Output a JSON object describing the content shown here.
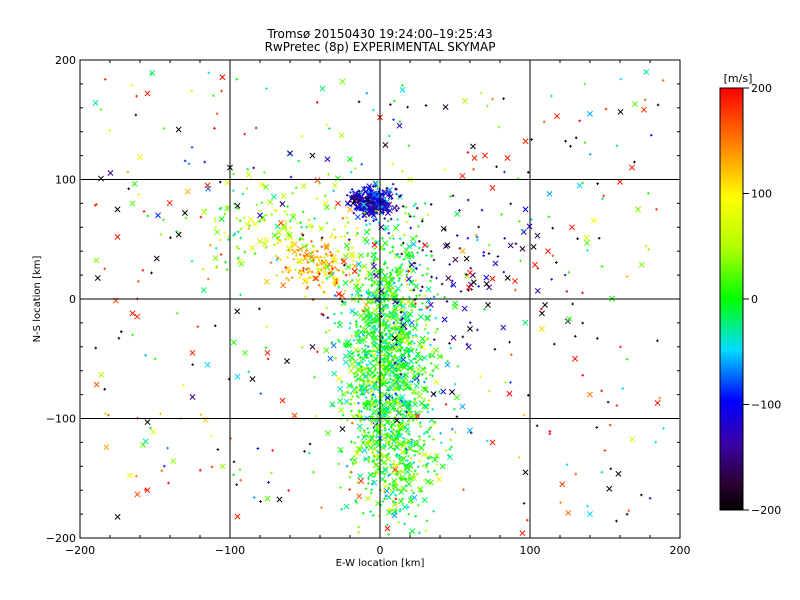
{
  "chart_data": {
    "type": "scatter",
    "title": "Tromsø 20150430 19:24:00–19:25:43",
    "subtitle": "RwPretec (8p) EXPERIMENTAL SKYMAP",
    "xlabel": "E-W location [km]",
    "ylabel": "N-S location [km]",
    "xlim": [
      -200,
      200
    ],
    "ylim": [
      -200,
      200
    ],
    "x_ticks": [
      "−200",
      "−100",
      "0",
      "100",
      "200"
    ],
    "y_ticks": [
      "−200",
      "−100",
      "0",
      "100",
      "200"
    ],
    "grid_values": [
      -100,
      0,
      100
    ],
    "colorbar": {
      "unit": "[m/s]",
      "range": [
        -200,
        200
      ],
      "ticks": [
        "200",
        "100",
        "0",
        "−100",
        "−200"
      ],
      "colormap": "rainbow (black → purple → blue → cyan → green → yellow → red)"
    },
    "marker_legend": "'×' = larger-amplitude echoes, '+' = smaller echoes",
    "clusters": [
      {
        "center": [
          5,
          -55
        ],
        "spread": [
          14,
          55
        ],
        "velocity": 0,
        "density": "very high"
      },
      {
        "center": [
          -5,
          82
        ],
        "spread": [
          8,
          6
        ],
        "velocity": -120,
        "density": "high"
      },
      {
        "center": [
          -40,
          30
        ],
        "spread": [
          14,
          12
        ],
        "velocity": 130,
        "density": "medium"
      },
      {
        "center": [
          -70,
          60
        ],
        "spread": [
          25,
          20
        ],
        "velocity": 40,
        "density": "medium"
      },
      {
        "center": [
          15,
          -130
        ],
        "spread": [
          15,
          25
        ],
        "velocity": 20,
        "density": "medium"
      },
      {
        "center": [
          45,
          20
        ],
        "spread": [
          35,
          35
        ],
        "velocity": -150,
        "density": "low"
      }
    ],
    "sparse_points": [
      {
        "x": -155,
        "y": 172,
        "v": 190,
        "m": "x"
      },
      {
        "x": -100,
        "y": 110,
        "v": -200,
        "m": "x"
      },
      {
        "x": -175,
        "y": 75,
        "v": -200,
        "m": "x"
      },
      {
        "x": -165,
        "y": 80,
        "v": 20,
        "m": "x"
      },
      {
        "x": -148,
        "y": 70,
        "v": -90,
        "m": "x"
      },
      {
        "x": -130,
        "y": 72,
        "v": -200,
        "m": "x"
      },
      {
        "x": -175,
        "y": 52,
        "v": 190,
        "m": "x"
      },
      {
        "x": -165,
        "y": -12,
        "v": 190,
        "m": "x"
      },
      {
        "x": -125,
        "y": -45,
        "v": 190,
        "m": "x"
      },
      {
        "x": -115,
        "y": -55,
        "v": -50,
        "m": "x"
      },
      {
        "x": -125,
        "y": -82,
        "v": -150,
        "m": "x"
      },
      {
        "x": -155,
        "y": -103,
        "v": -200,
        "m": "x"
      },
      {
        "x": -158,
        "y": -122,
        "v": 20,
        "m": "x"
      },
      {
        "x": -105,
        "y": -140,
        "v": 40,
        "m": "x"
      },
      {
        "x": -155,
        "y": -160,
        "v": 190,
        "m": "x"
      },
      {
        "x": -95,
        "y": -182,
        "v": 190,
        "m": "x"
      },
      {
        "x": -75,
        "y": -167,
        "v": 20,
        "m": "x"
      },
      {
        "x": -25,
        "y": 182,
        "v": 30,
        "m": "x"
      },
      {
        "x": 15,
        "y": 175,
        "v": -50,
        "m": "x"
      },
      {
        "x": 0,
        "y": 152,
        "v": 190,
        "m": "x"
      },
      {
        "x": 13,
        "y": 145,
        "v": -120,
        "m": "x"
      },
      {
        "x": 97,
        "y": 132,
        "v": 190,
        "m": "x"
      },
      {
        "x": 118,
        "y": 153,
        "v": 190,
        "m": "x"
      },
      {
        "x": 140,
        "y": 155,
        "v": -60,
        "m": "x"
      },
      {
        "x": 170,
        "y": 163,
        "v": 20,
        "m": "x"
      },
      {
        "x": 168,
        "y": 110,
        "v": 190,
        "m": "x"
      },
      {
        "x": 160,
        "y": 98,
        "v": 190,
        "m": "x"
      },
      {
        "x": 133,
        "y": 95,
        "v": -50,
        "m": "x"
      },
      {
        "x": 113,
        "y": 88,
        "v": -60,
        "m": "x"
      },
      {
        "x": 97,
        "y": 75,
        "v": -100,
        "m": "x"
      },
      {
        "x": 172,
        "y": 75,
        "v": 30,
        "m": "x"
      },
      {
        "x": 105,
        "y": 53,
        "v": -170,
        "m": "x"
      },
      {
        "x": 128,
        "y": 60,
        "v": 190,
        "m": "x"
      },
      {
        "x": 138,
        "y": 47,
        "v": 20,
        "m": "x"
      },
      {
        "x": 95,
        "y": 42,
        "v": -180,
        "m": "x"
      },
      {
        "x": 112,
        "y": 40,
        "v": 190,
        "m": "x"
      },
      {
        "x": 108,
        "y": -12,
        "v": -200,
        "m": "x"
      },
      {
        "x": 108,
        "y": -25,
        "v": 110,
        "m": "x"
      },
      {
        "x": 130,
        "y": -50,
        "v": 190,
        "m": "x"
      },
      {
        "x": 140,
        "y": -80,
        "v": 150,
        "m": "x"
      },
      {
        "x": 185,
        "y": -87,
        "v": 190,
        "m": "x"
      },
      {
        "x": 97,
        "y": -145,
        "v": -200,
        "m": "x"
      },
      {
        "x": 140,
        "y": -180,
        "v": -50,
        "m": "x"
      },
      {
        "x": 95,
        "y": -196,
        "v": 190,
        "m": "x"
      },
      {
        "x": 5,
        "y": -192,
        "v": 190,
        "m": "x"
      },
      {
        "x": 25,
        "y": -98,
        "v": 190,
        "m": "x"
      },
      {
        "x": -65,
        "y": -85,
        "v": 190,
        "m": "x"
      },
      {
        "x": -85,
        "y": -67,
        "v": -200,
        "m": "x"
      },
      {
        "x": -95,
        "y": -65,
        "v": -50,
        "m": "x"
      },
      {
        "x": -75,
        "y": -45,
        "v": 190,
        "m": "x"
      },
      {
        "x": -90,
        "y": -45,
        "v": 20,
        "m": "x"
      },
      {
        "x": -62,
        "y": -52,
        "v": -200,
        "m": "x"
      },
      {
        "x": -45,
        "y": -40,
        "v": -170,
        "m": "x"
      },
      {
        "x": -60,
        "y": 122,
        "v": -150,
        "m": "x"
      },
      {
        "x": -45,
        "y": 120,
        "v": -200,
        "m": "x"
      },
      {
        "x": -35,
        "y": 117,
        "v": -120,
        "m": "x"
      },
      {
        "x": -20,
        "y": 117,
        "v": 0,
        "m": "x"
      },
      {
        "x": 63,
        "y": 118,
        "v": 190,
        "m": "x"
      },
      {
        "x": 70,
        "y": 120,
        "v": 190,
        "m": "x"
      },
      {
        "x": 85,
        "y": 118,
        "v": 190,
        "m": "x"
      },
      {
        "x": 55,
        "y": 103,
        "v": 190,
        "m": "x"
      },
      {
        "x": 75,
        "y": 93,
        "v": 190,
        "m": "x"
      },
      {
        "x": 20,
        "y": 100,
        "v": 60,
        "m": "x"
      },
      {
        "x": -80,
        "y": 70,
        "v": -110,
        "m": "x"
      },
      {
        "x": -28,
        "y": 80,
        "v": 190,
        "m": "x"
      },
      {
        "x": -20,
        "y": 75,
        "v": 130,
        "m": "x"
      },
      {
        "x": -30,
        "y": 95,
        "v": 70,
        "m": "x"
      },
      {
        "x": -95,
        "y": 78,
        "v": -200,
        "m": "x"
      },
      {
        "x": 30,
        "y": 45,
        "v": 190,
        "m": "x"
      },
      {
        "x": 45,
        "y": 45,
        "v": -200,
        "m": "x"
      },
      {
        "x": 55,
        "y": 40,
        "v": 130,
        "m": "x"
      },
      {
        "x": 60,
        "y": 22,
        "v": 190,
        "m": "x"
      },
      {
        "x": 75,
        "y": 17,
        "v": 190,
        "m": "x"
      },
      {
        "x": 90,
        "y": 15,
        "v": 190,
        "m": "x"
      },
      {
        "x": 72,
        "y": -5,
        "v": -200,
        "m": "x"
      },
      {
        "x": 60,
        "y": -25,
        "v": -200,
        "m": "x"
      },
      {
        "x": 45,
        "y": -55,
        "v": -60,
        "m": "x"
      },
      {
        "x": 55,
        "y": -90,
        "v": -60,
        "m": "x"
      },
      {
        "x": 60,
        "y": -110,
        "v": -60,
        "m": "x"
      },
      {
        "x": 75,
        "y": -120,
        "v": 190,
        "m": "x"
      },
      {
        "x": -115,
        "y": 95,
        "v": 190,
        "m": "x"
      },
      {
        "x": 110,
        "y": -5,
        "v": -200,
        "m": "x"
      }
    ]
  }
}
